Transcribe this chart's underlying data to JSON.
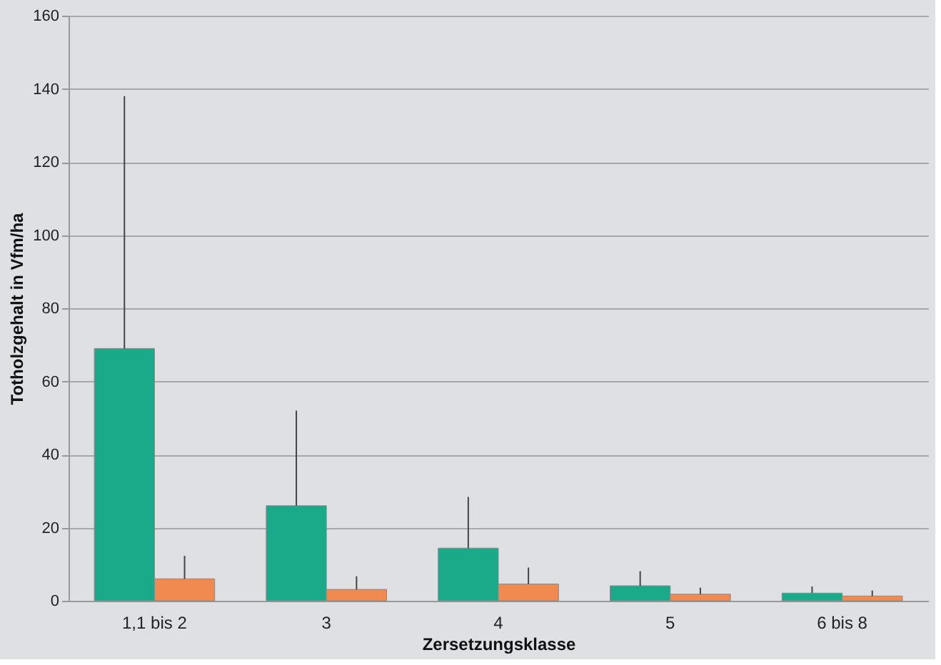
{
  "chart_data": {
    "type": "bar",
    "xlabel": "Zersetzungsklasse",
    "ylabel": "Totholzgehalt  in Vfm/ha",
    "categories": [
      "1,1 bis 2",
      "3",
      "4",
      "5",
      "6 bis 8"
    ],
    "series": [
      {
        "color": "#1aaa8a",
        "values": [
          69,
          26,
          14.4,
          4.1,
          2.1
        ],
        "errors": [
          [
            69,
            138
          ],
          [
            26,
            52
          ],
          [
            14.4,
            28.4
          ],
          [
            4.1,
            8.1
          ],
          [
            2.1,
            3.9
          ]
        ]
      },
      {
        "color": "#f08a50",
        "values": [
          6,
          3.1,
          4.6,
          1.8,
          1.3
        ],
        "errors": [
          [
            6,
            12.3
          ],
          [
            3.1,
            6.7
          ],
          [
            4.6,
            9.1
          ],
          [
            1.8,
            3.6
          ],
          [
            1.3,
            2.8
          ]
        ]
      }
    ],
    "ylim": [
      0,
      160
    ],
    "yticks": [
      0,
      20,
      40,
      60,
      80,
      100,
      120,
      140,
      160
    ],
    "grid": "y"
  }
}
